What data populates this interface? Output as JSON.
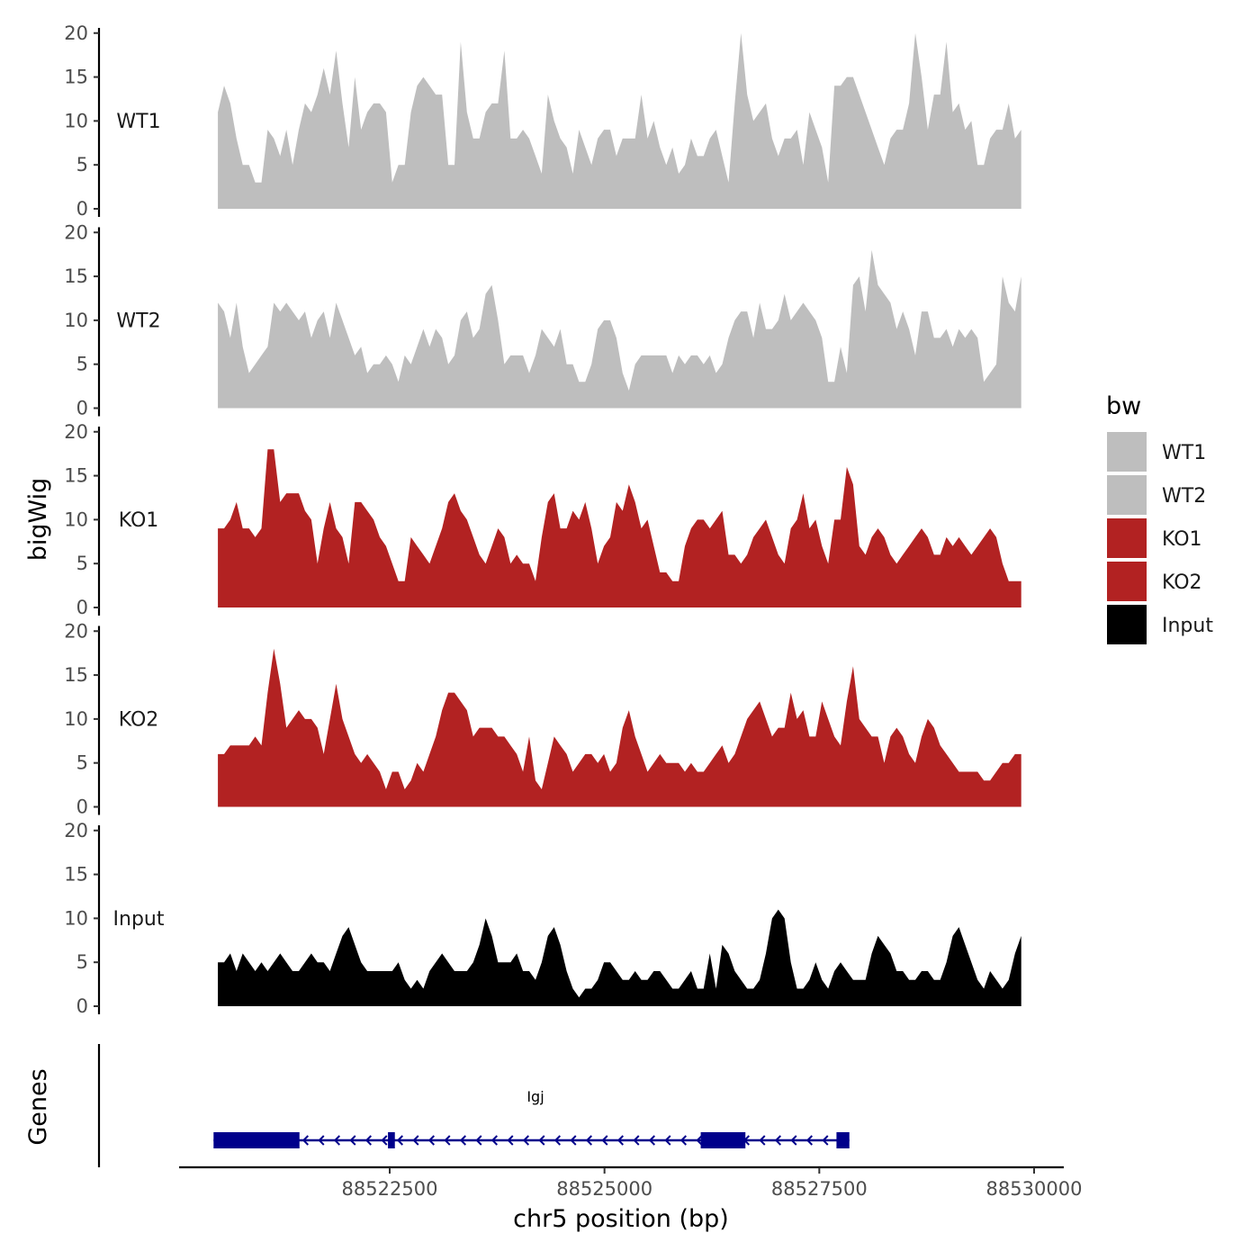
{
  "chart_data": {
    "type": "area",
    "y_axis_title": "bigWig",
    "x_axis_title": "chr5 position (bp)",
    "genes_panel_title": "Genes",
    "xlim": [
      88520000,
      88530000
    ],
    "ylim": [
      0,
      21
    ],
    "y_ticks": [
      0,
      5,
      10,
      15,
      20
    ],
    "x_ticks": [
      88522500,
      88525000,
      88527500,
      88530000
    ],
    "legend": {
      "title": "bw",
      "position": "right",
      "entries": [
        {
          "label": "WT1",
          "color": "#bebebe"
        },
        {
          "label": "WT2",
          "color": "#bebebe"
        },
        {
          "label": "KO1",
          "color": "#b22222"
        },
        {
          "label": "KO2",
          "color": "#b22222"
        },
        {
          "label": "Input",
          "color": "#000000"
        }
      ]
    },
    "x_start": 88520500,
    "x_end": 88529850,
    "series": [
      {
        "name": "WT1",
        "color": "#bebebe",
        "values": [
          11,
          14,
          12,
          8,
          5,
          5,
          3,
          3,
          9,
          8,
          6,
          9,
          5,
          9,
          12,
          11,
          13,
          16,
          13,
          18,
          12,
          7,
          15,
          9,
          11,
          12,
          12,
          11,
          3,
          5,
          5,
          11,
          14,
          15,
          14,
          13,
          13,
          5,
          5,
          19,
          11,
          8,
          8,
          11,
          12,
          12,
          18,
          8,
          8,
          9,
          8,
          6,
          4,
          13,
          10,
          8,
          7,
          4,
          9,
          7,
          5,
          8,
          9,
          9,
          6,
          8,
          8,
          8,
          13,
          8,
          10,
          7,
          5,
          7,
          4,
          5,
          8,
          6,
          6,
          8,
          9,
          6,
          3,
          12,
          20,
          13,
          10,
          11,
          12,
          8,
          6,
          8,
          8,
          9,
          5,
          11,
          9,
          7,
          3,
          14,
          14,
          15,
          15,
          13,
          11,
          9,
          7,
          5,
          8,
          9,
          9,
          12,
          20,
          15,
          9,
          13,
          13,
          19,
          11,
          12,
          9,
          10,
          5,
          5,
          8,
          9,
          9,
          12,
          8,
          9
        ]
      },
      {
        "name": "WT2",
        "color": "#bebebe",
        "values": [
          12,
          11,
          8,
          12,
          7,
          4,
          5,
          6,
          7,
          12,
          11,
          12,
          11,
          10,
          11,
          8,
          10,
          11,
          8,
          12,
          10,
          8,
          6,
          7,
          4,
          5,
          5,
          6,
          5,
          3,
          6,
          5,
          7,
          9,
          7,
          9,
          8,
          5,
          6,
          10,
          11,
          8,
          9,
          13,
          14,
          10,
          5,
          6,
          6,
          6,
          4,
          6,
          9,
          8,
          7,
          9,
          5,
          5,
          3,
          3,
          5,
          9,
          10,
          10,
          8,
          4,
          2,
          5,
          6,
          6,
          6,
          6,
          6,
          4,
          6,
          5,
          6,
          6,
          5,
          6,
          4,
          5,
          8,
          10,
          11,
          11,
          8,
          12,
          9,
          9,
          10,
          13,
          10,
          11,
          12,
          11,
          10,
          8,
          3,
          3,
          7,
          4,
          14,
          15,
          11,
          18,
          14,
          13,
          12,
          9,
          11,
          9,
          6,
          11,
          11,
          8,
          8,
          9,
          7,
          9,
          8,
          9,
          8,
          3,
          4,
          5,
          15,
          12,
          11,
          15
        ]
      },
      {
        "name": "KO1",
        "color": "#b22222",
        "values": [
          9,
          9,
          10,
          12,
          9,
          9,
          8,
          9,
          18,
          18,
          12,
          13,
          13,
          13,
          11,
          10,
          5,
          9,
          12,
          9,
          8,
          5,
          12,
          12,
          11,
          10,
          8,
          7,
          5,
          3,
          3,
          8,
          7,
          6,
          5,
          7,
          9,
          12,
          13,
          11,
          10,
          8,
          6,
          5,
          7,
          9,
          8,
          5,
          6,
          5,
          5,
          3,
          8,
          12,
          13,
          9,
          9,
          11,
          10,
          12,
          9,
          5,
          7,
          8,
          12,
          11,
          14,
          12,
          9,
          10,
          7,
          4,
          4,
          3,
          3,
          7,
          9,
          10,
          10,
          9,
          10,
          11,
          6,
          6,
          5,
          6,
          8,
          9,
          10,
          8,
          6,
          5,
          9,
          10,
          13,
          9,
          10,
          7,
          5,
          10,
          10,
          16,
          14,
          7,
          6,
          8,
          9,
          8,
          6,
          5,
          6,
          7,
          8,
          9,
          8,
          6,
          6,
          8,
          7,
          8,
          7,
          6,
          7,
          8,
          9,
          8,
          5,
          3,
          3,
          3
        ]
      },
      {
        "name": "KO2",
        "color": "#b22222",
        "values": [
          6,
          6,
          7,
          7,
          7,
          7,
          8,
          7,
          13,
          18,
          14,
          9,
          10,
          11,
          10,
          10,
          9,
          6,
          10,
          14,
          10,
          8,
          6,
          5,
          6,
          5,
          4,
          2,
          4,
          4,
          2,
          3,
          5,
          4,
          6,
          8,
          11,
          13,
          13,
          12,
          11,
          8,
          9,
          9,
          9,
          8,
          8,
          7,
          6,
          4,
          8,
          3,
          2,
          5,
          8,
          7,
          6,
          4,
          5,
          6,
          6,
          5,
          6,
          4,
          5,
          9,
          11,
          8,
          6,
          4,
          5,
          6,
          5,
          5,
          5,
          4,
          5,
          4,
          4,
          5,
          6,
          7,
          5,
          6,
          8,
          10,
          11,
          12,
          10,
          8,
          9,
          9,
          13,
          10,
          11,
          8,
          8,
          12,
          10,
          8,
          7,
          12,
          16,
          10,
          9,
          8,
          8,
          5,
          8,
          9,
          8,
          6,
          5,
          8,
          10,
          9,
          7,
          6,
          5,
          4,
          4,
          4,
          4,
          3,
          3,
          4,
          5,
          5,
          6,
          6
        ]
      },
      {
        "name": "Input",
        "color": "#000000",
        "values": [
          5,
          5,
          6,
          4,
          6,
          5,
          4,
          5,
          4,
          5,
          6,
          5,
          4,
          4,
          5,
          6,
          5,
          5,
          4,
          6,
          8,
          9,
          7,
          5,
          4,
          4,
          4,
          4,
          4,
          5,
          3,
          2,
          3,
          2,
          4,
          5,
          6,
          5,
          4,
          4,
          4,
          5,
          7,
          10,
          8,
          5,
          5,
          5,
          6,
          4,
          4,
          3,
          5,
          8,
          9,
          7,
          4,
          2,
          1,
          2,
          2,
          3,
          5,
          5,
          4,
          3,
          3,
          4,
          3,
          3,
          4,
          4,
          3,
          2,
          2,
          3,
          4,
          2,
          2,
          6,
          2,
          7,
          6,
          4,
          3,
          2,
          2,
          3,
          6,
          10,
          11,
          10,
          5,
          2,
          2,
          3,
          5,
          3,
          2,
          4,
          5,
          4,
          3,
          3,
          3,
          6,
          8,
          7,
          6,
          4,
          4,
          3,
          3,
          4,
          4,
          3,
          3,
          5,
          8,
          9,
          7,
          5,
          3,
          2,
          4,
          3,
          2,
          3,
          6,
          8
        ]
      }
    ],
    "gene": {
      "name": "Igj",
      "strand": "-",
      "start": 88520450,
      "end": 88527850,
      "exons": [
        [
          88520450,
          88521450
        ],
        [
          88522480,
          88522560
        ],
        [
          88526120,
          88526640
        ],
        [
          88527700,
          88527850
        ]
      ],
      "color": "#00008b"
    }
  },
  "track_labels": [
    "WT1",
    "WT2",
    "KO1",
    "KO2",
    "Input"
  ],
  "colors": {
    "wt": "#bebebe",
    "ko": "#b22222",
    "input": "#000000",
    "gene": "#00008b"
  }
}
